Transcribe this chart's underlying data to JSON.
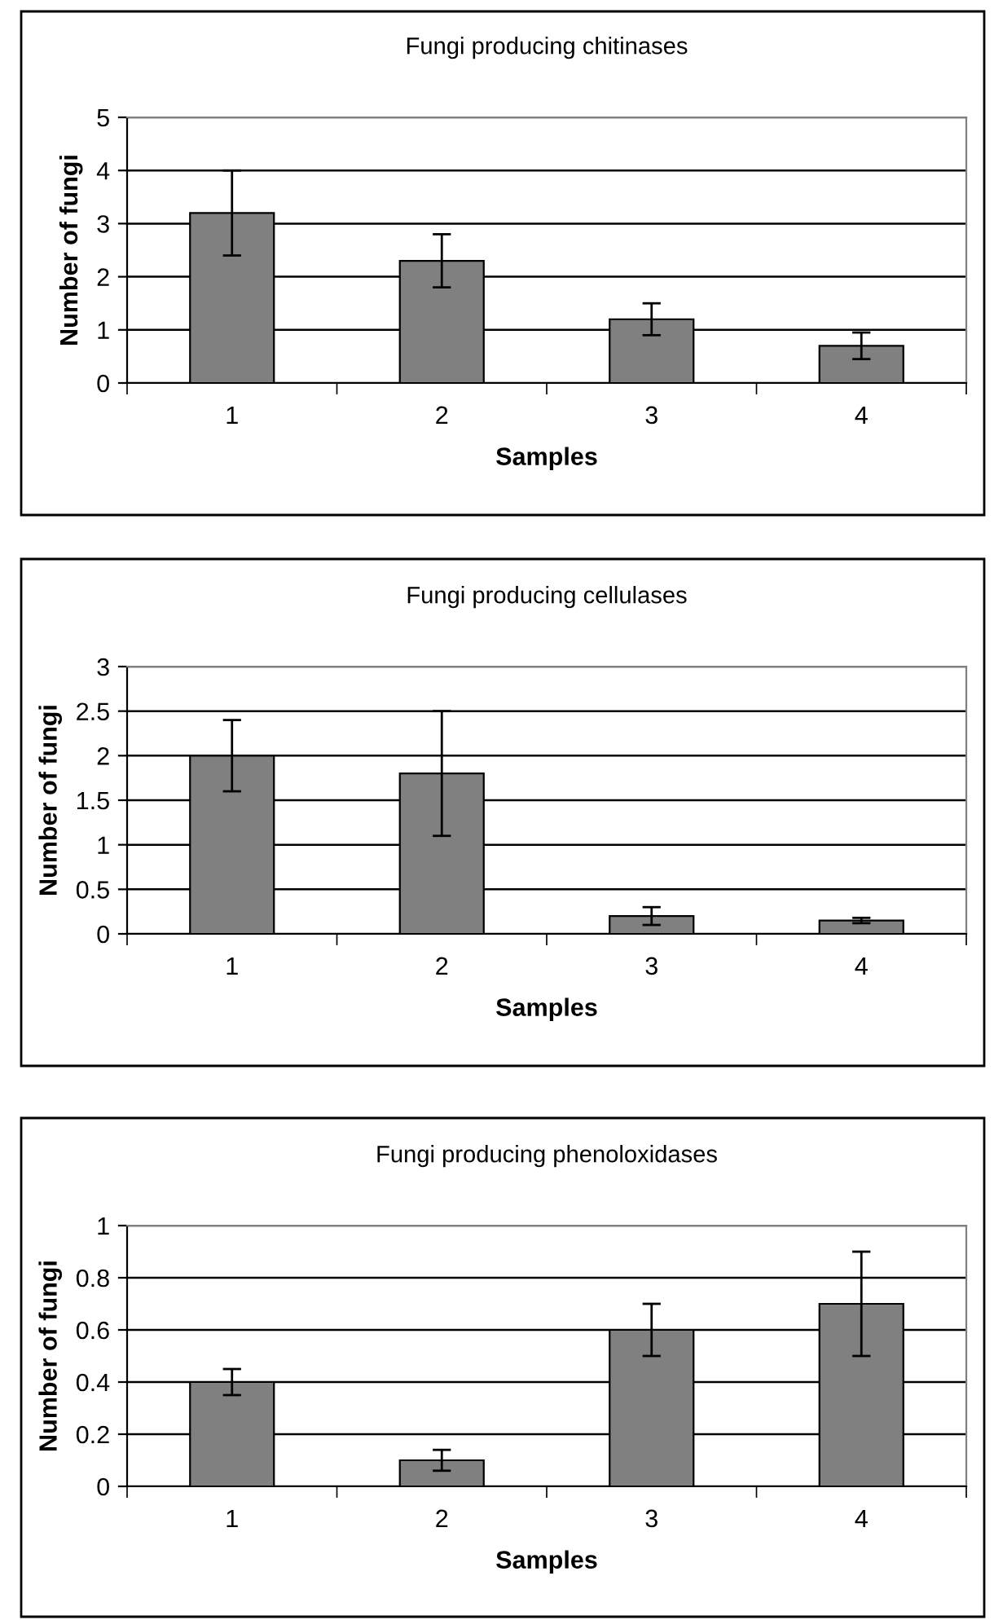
{
  "chart_data": [
    {
      "type": "bar",
      "title": "Fungi producing chitinases",
      "xlabel": "Samples",
      "ylabel": "Number of fungi",
      "categories": [
        "1",
        "2",
        "3",
        "4"
      ],
      "values": [
        3.2,
        2.3,
        1.2,
        0.7
      ],
      "errors": [
        0.8,
        0.5,
        0.3,
        0.25
      ],
      "color": "#808080",
      "ylim": [
        0,
        5
      ],
      "yticks": [
        0,
        1,
        2,
        3,
        4,
        5
      ],
      "grid": "y"
    },
    {
      "type": "bar",
      "title": "Fungi producing cellulases",
      "xlabel": "Samples",
      "ylabel": "Number of fungi",
      "categories": [
        "1",
        "2",
        "3",
        "4"
      ],
      "values": [
        2.0,
        1.8,
        0.2,
        0.15
      ],
      "errors": [
        0.4,
        0.7,
        0.1,
        0.03
      ],
      "color": "#808080",
      "ylim": [
        0,
        3
      ],
      "yticks": [
        0,
        0.5,
        1,
        1.5,
        2,
        2.5,
        3
      ],
      "grid": "y"
    },
    {
      "type": "bar",
      "title": "Fungi producing phenoloxidases",
      "xlabel": "Samples",
      "ylabel": "Number of fungi",
      "categories": [
        "1",
        "2",
        "3",
        "4"
      ],
      "values": [
        0.4,
        0.1,
        0.6,
        0.7
      ],
      "errors": [
        0.05,
        0.04,
        0.1,
        0.2
      ],
      "color": "#808080",
      "ylim": [
        0,
        1
      ],
      "yticks": [
        0,
        0.2,
        0.4,
        0.6,
        0.8,
        1
      ],
      "grid": "y"
    }
  ]
}
